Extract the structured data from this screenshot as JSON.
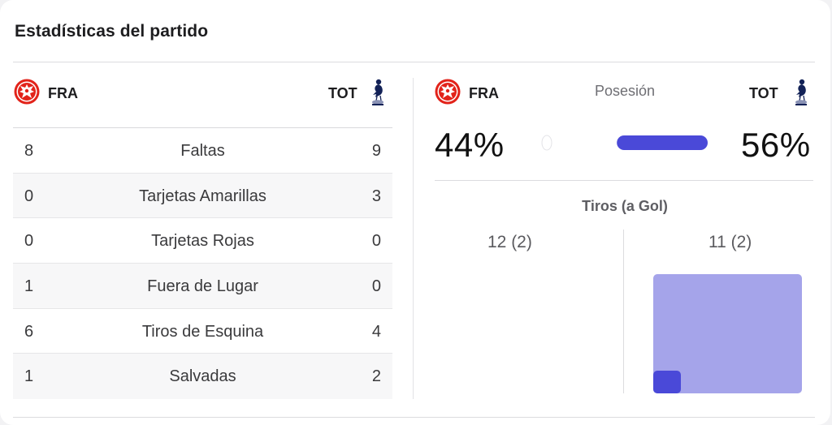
{
  "title": "Estadísticas del partido",
  "teams": {
    "home": {
      "abbr": "FRA",
      "crest_icon": "eintracht-eagle-icon",
      "color": "#e2231a"
    },
    "away": {
      "abbr": "TOT",
      "crest_icon": "spurs-cockerel-icon",
      "color": "#132257"
    }
  },
  "stats": [
    {
      "home": "8",
      "label": "Faltas",
      "away": "9"
    },
    {
      "home": "0",
      "label": "Tarjetas Amarillas",
      "away": "3"
    },
    {
      "home": "0",
      "label": "Tarjetas Rojas",
      "away": "0"
    },
    {
      "home": "1",
      "label": "Fuera de Lugar",
      "away": "0"
    },
    {
      "home": "6",
      "label": "Tiros de Esquina",
      "away": "4"
    },
    {
      "home": "1",
      "label": "Salvadas",
      "away": "2"
    }
  ],
  "possession": {
    "title": "Posesión",
    "home_pct": "44%",
    "away_pct": "56%",
    "home_value": 44,
    "away_value": 56,
    "bar_color": "#4a49d8",
    "track_color": "#e8e8ec"
  },
  "shots": {
    "title": "Tiros (a Gol)",
    "home": "12 (2)",
    "away": "11 (2)",
    "away_total_color": "#a5a4ea",
    "away_on_target_color": "#4a49d8"
  }
}
